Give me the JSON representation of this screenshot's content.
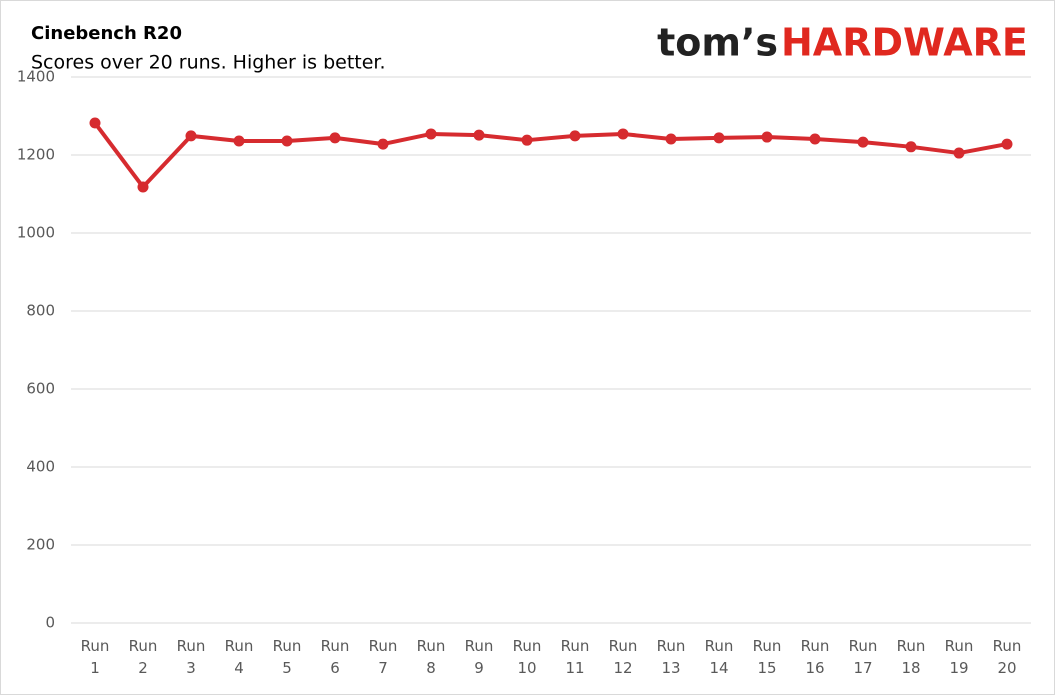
{
  "chart_data": {
    "type": "line",
    "title": "Cinebench R20",
    "subtitle": "Scores over 20 runs. Higher is better.",
    "logo": {
      "first": "tom’s",
      "second": "HARDWARE"
    },
    "categories": [
      "Run 1",
      "Run 2",
      "Run 3",
      "Run 4",
      "Run 5",
      "Run 6",
      "Run 7",
      "Run 8",
      "Run 9",
      "Run 10",
      "Run 11",
      "Run 12",
      "Run 13",
      "Run 14",
      "Run 15",
      "Run 16",
      "Run 17",
      "Run 18",
      "Run 19",
      "Run 20"
    ],
    "values": [
      1282,
      1118,
      1249,
      1236,
      1236,
      1244,
      1228,
      1254,
      1251,
      1238,
      1249,
      1254,
      1241,
      1244,
      1246,
      1241,
      1233,
      1221,
      1205,
      1228
    ],
    "color": "#d62b2f",
    "ylim": [
      0,
      1400
    ],
    "yticks": [
      0,
      200,
      400,
      600,
      800,
      1000,
      1200,
      1400
    ],
    "grid": true
  }
}
